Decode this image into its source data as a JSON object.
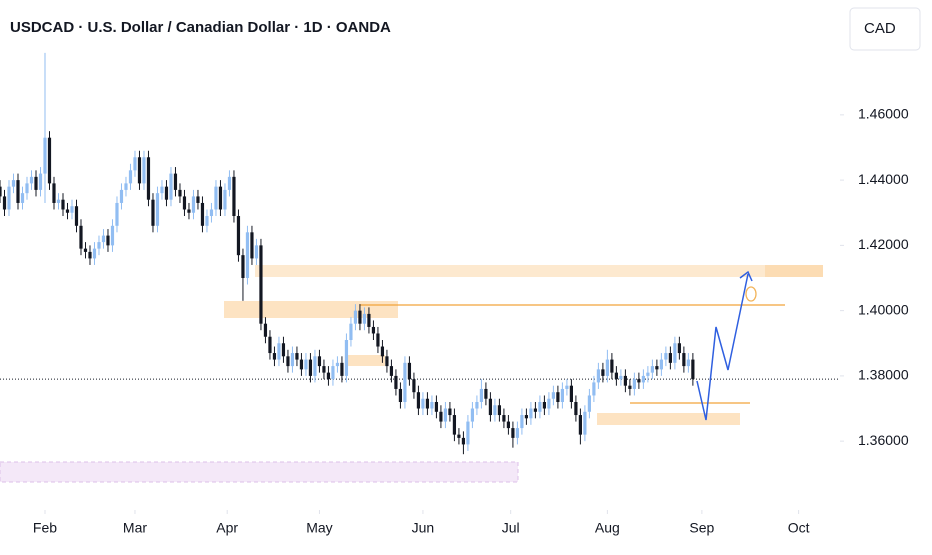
{
  "chart_data": {
    "type": "candlestick",
    "title": "USDCAD · U.S. Dollar / Canadian Dollar · 1D · OANDA",
    "currency": "CAD",
    "up_color": "#91bdf2",
    "down_color": "#131722",
    "xlim": [
      0,
      186.7
    ],
    "xticks": [
      {
        "value": 10,
        "label": "Feb"
      },
      {
        "value": 30,
        "label": "Mar"
      },
      {
        "value": 50.5,
        "label": "Apr"
      },
      {
        "value": 71,
        "label": "May"
      },
      {
        "value": 94,
        "label": "Jun"
      },
      {
        "value": 113.5,
        "label": "Jul"
      },
      {
        "value": 135,
        "label": "Aug"
      },
      {
        "value": 156,
        "label": "Sep"
      },
      {
        "value": 177.5,
        "label": "Oct"
      }
    ],
    "ylim": [
      1.3389,
      1.4952
    ],
    "yticks": [
      {
        "value": 1.36,
        "label": "1.36000"
      },
      {
        "value": 1.38,
        "label": "1.38000"
      },
      {
        "value": 1.4,
        "label": "1.40000"
      },
      {
        "value": 1.42,
        "label": "1.42000"
      },
      {
        "value": 1.44,
        "label": "1.44000"
      },
      {
        "value": 1.46,
        "label": "1.46000"
      }
    ],
    "open": [
      1.438,
      1.435,
      1.431,
      1.438,
      1.44,
      1.433,
      1.436,
      1.439,
      1.441,
      1.437,
      1.442,
      1.453,
      1.439,
      1.433,
      1.434,
      1.431,
      1.43,
      1.432,
      1.426,
      1.419,
      1.418,
      1.416,
      1.419,
      1.421,
      1.423,
      1.42,
      1.426,
      1.433,
      1.437,
      1.439,
      1.443,
      1.447,
      1.439,
      1.447,
      1.434,
      1.426,
      1.436,
      1.438,
      1.434,
      1.442,
      1.437,
      1.435,
      1.431,
      1.43,
      1.435,
      1.433,
      1.426,
      1.429,
      1.431,
      1.438,
      1.431,
      1.437,
      1.441,
      1.429,
      1.417,
      1.41,
      1.424,
      1.416,
      1.42,
      1.396,
      1.392,
      1.387,
      1.385,
      1.39,
      1.386,
      1.383,
      1.387,
      1.385,
      1.382,
      1.385,
      1.38,
      1.386,
      1.383,
      1.381,
      1.379,
      1.383,
      1.384,
      1.38,
      1.391,
      1.396,
      1.4,
      1.396,
      1.399,
      1.395,
      1.393,
      1.389,
      1.386,
      1.383,
      1.38,
      1.376,
      1.372,
      1.384,
      1.379,
      1.375,
      1.37,
      1.373,
      1.37,
      1.372,
      1.369,
      1.366,
      1.37,
      1.368,
      1.362,
      1.361,
      1.359,
      1.366,
      1.37,
      1.372,
      1.376,
      1.373,
      1.368,
      1.371,
      1.368,
      1.366,
      1.364,
      1.361,
      1.364,
      1.368,
      1.367,
      1.37,
      1.369,
      1.372,
      1.37,
      1.373,
      1.375,
      1.372,
      1.376,
      1.377,
      1.372,
      1.368,
      1.362,
      1.369,
      1.374,
      1.378,
      1.382,
      1.38,
      1.385,
      1.381,
      1.379,
      1.38,
      1.377,
      1.376,
      1.379,
      1.378,
      1.38,
      1.381,
      1.383,
      1.382,
      1.385,
      1.387,
      1.384,
      1.39,
      1.387,
      1.383,
      1.385
    ],
    "high": [
      1.44,
      1.437,
      1.44,
      1.442,
      1.442,
      1.438,
      1.441,
      1.443,
      1.443,
      1.444,
      1.479,
      1.455,
      1.441,
      1.436,
      1.436,
      1.433,
      1.434,
      1.434,
      1.428,
      1.421,
      1.42,
      1.421,
      1.423,
      1.425,
      1.425,
      1.428,
      1.435,
      1.439,
      1.441,
      1.445,
      1.449,
      1.449,
      1.449,
      1.449,
      1.436,
      1.438,
      1.44,
      1.44,
      1.444,
      1.444,
      1.439,
      1.437,
      1.433,
      1.437,
      1.437,
      1.435,
      1.431,
      1.433,
      1.44,
      1.44,
      1.439,
      1.443,
      1.443,
      1.431,
      1.419,
      1.426,
      1.426,
      1.422,
      1.422,
      1.398,
      1.394,
      1.389,
      1.392,
      1.392,
      1.388,
      1.389,
      1.389,
      1.387,
      1.387,
      1.387,
      1.388,
      1.388,
      1.385,
      1.383,
      1.385,
      1.386,
      1.386,
      1.393,
      1.398,
      1.402,
      1.402,
      1.401,
      1.401,
      1.397,
      1.395,
      1.391,
      1.388,
      1.385,
      1.382,
      1.378,
      1.386,
      1.386,
      1.381,
      1.377,
      1.375,
      1.375,
      1.374,
      1.374,
      1.371,
      1.372,
      1.372,
      1.37,
      1.364,
      1.363,
      1.368,
      1.372,
      1.374,
      1.379,
      1.378,
      1.375,
      1.373,
      1.373,
      1.37,
      1.368,
      1.366,
      1.366,
      1.37,
      1.37,
      1.372,
      1.372,
      1.374,
      1.374,
      1.375,
      1.377,
      1.377,
      1.378,
      1.379,
      1.379,
      1.374,
      1.37,
      1.371,
      1.376,
      1.38,
      1.384,
      1.384,
      1.388,
      1.387,
      1.383,
      1.382,
      1.382,
      1.379,
      1.381,
      1.381,
      1.382,
      1.383,
      1.385,
      1.385,
      1.387,
      1.389,
      1.389,
      1.392,
      1.392,
      1.389,
      1.387,
      1.387
    ],
    "low": [
      1.433,
      1.429,
      1.429,
      1.436,
      1.431,
      1.431,
      1.434,
      1.437,
      1.435,
      1.435,
      1.433,
      1.437,
      1.431,
      1.431,
      1.429,
      1.428,
      1.428,
      1.424,
      1.417,
      1.416,
      1.414,
      1.414,
      1.417,
      1.419,
      1.418,
      1.418,
      1.424,
      1.431,
      1.435,
      1.437,
      1.441,
      1.437,
      1.437,
      1.432,
      1.424,
      1.424,
      1.434,
      1.432,
      1.432,
      1.435,
      1.433,
      1.429,
      1.428,
      1.428,
      1.431,
      1.424,
      1.424,
      1.427,
      1.429,
      1.429,
      1.429,
      1.435,
      1.427,
      1.415,
      1.403,
      1.408,
      1.414,
      1.414,
      1.394,
      1.39,
      1.385,
      1.383,
      1.383,
      1.384,
      1.381,
      1.381,
      1.383,
      1.38,
      1.38,
      1.378,
      1.378,
      1.381,
      1.379,
      1.377,
      1.377,
      1.381,
      1.378,
      1.378,
      1.389,
      1.394,
      1.394,
      1.394,
      1.393,
      1.391,
      1.387,
      1.384,
      1.381,
      1.378,
      1.374,
      1.37,
      1.37,
      1.377,
      1.373,
      1.368,
      1.368,
      1.368,
      1.368,
      1.367,
      1.364,
      1.364,
      1.366,
      1.36,
      1.359,
      1.356,
      1.357,
      1.364,
      1.368,
      1.37,
      1.371,
      1.366,
      1.366,
      1.366,
      1.364,
      1.362,
      1.358,
      1.359,
      1.362,
      1.365,
      1.365,
      1.367,
      1.367,
      1.368,
      1.368,
      1.371,
      1.37,
      1.37,
      1.374,
      1.37,
      1.366,
      1.359,
      1.36,
      1.367,
      1.372,
      1.376,
      1.378,
      1.378,
      1.379,
      1.377,
      1.377,
      1.375,
      1.374,
      1.374,
      1.376,
      1.376,
      1.378,
      1.379,
      1.38,
      1.38,
      1.383,
      1.382,
      1.382,
      1.385,
      1.381,
      1.381,
      1.377
    ],
    "close": [
      1.435,
      1.431,
      1.438,
      1.44,
      1.433,
      1.436,
      1.439,
      1.441,
      1.437,
      1.442,
      1.453,
      1.439,
      1.433,
      1.434,
      1.431,
      1.43,
      1.432,
      1.426,
      1.419,
      1.418,
      1.416,
      1.419,
      1.421,
      1.423,
      1.42,
      1.426,
      1.433,
      1.437,
      1.439,
      1.443,
      1.447,
      1.439,
      1.447,
      1.434,
      1.426,
      1.436,
      1.438,
      1.434,
      1.442,
      1.437,
      1.435,
      1.431,
      1.43,
      1.435,
      1.433,
      1.426,
      1.429,
      1.431,
      1.438,
      1.431,
      1.437,
      1.441,
      1.429,
      1.417,
      1.41,
      1.424,
      1.416,
      1.42,
      1.396,
      1.392,
      1.387,
      1.385,
      1.39,
      1.386,
      1.383,
      1.387,
      1.385,
      1.382,
      1.385,
      1.38,
      1.386,
      1.383,
      1.381,
      1.379,
      1.383,
      1.384,
      1.38,
      1.391,
      1.396,
      1.4,
      1.396,
      1.399,
      1.395,
      1.393,
      1.389,
      1.386,
      1.383,
      1.38,
      1.376,
      1.372,
      1.384,
      1.379,
      1.375,
      1.37,
      1.373,
      1.37,
      1.372,
      1.369,
      1.366,
      1.37,
      1.368,
      1.362,
      1.361,
      1.359,
      1.366,
      1.37,
      1.372,
      1.376,
      1.373,
      1.368,
      1.371,
      1.368,
      1.366,
      1.364,
      1.361,
      1.364,
      1.368,
      1.367,
      1.37,
      1.369,
      1.372,
      1.37,
      1.373,
      1.375,
      1.372,
      1.376,
      1.377,
      1.372,
      1.368,
      1.362,
      1.369,
      1.374,
      1.378,
      1.382,
      1.38,
      1.385,
      1.381,
      1.379,
      1.38,
      1.377,
      1.376,
      1.379,
      1.378,
      1.38,
      1.381,
      1.383,
      1.382,
      1.385,
      1.387,
      1.384,
      1.39,
      1.387,
      1.383,
      1.385,
      1.379
    ]
  }
}
